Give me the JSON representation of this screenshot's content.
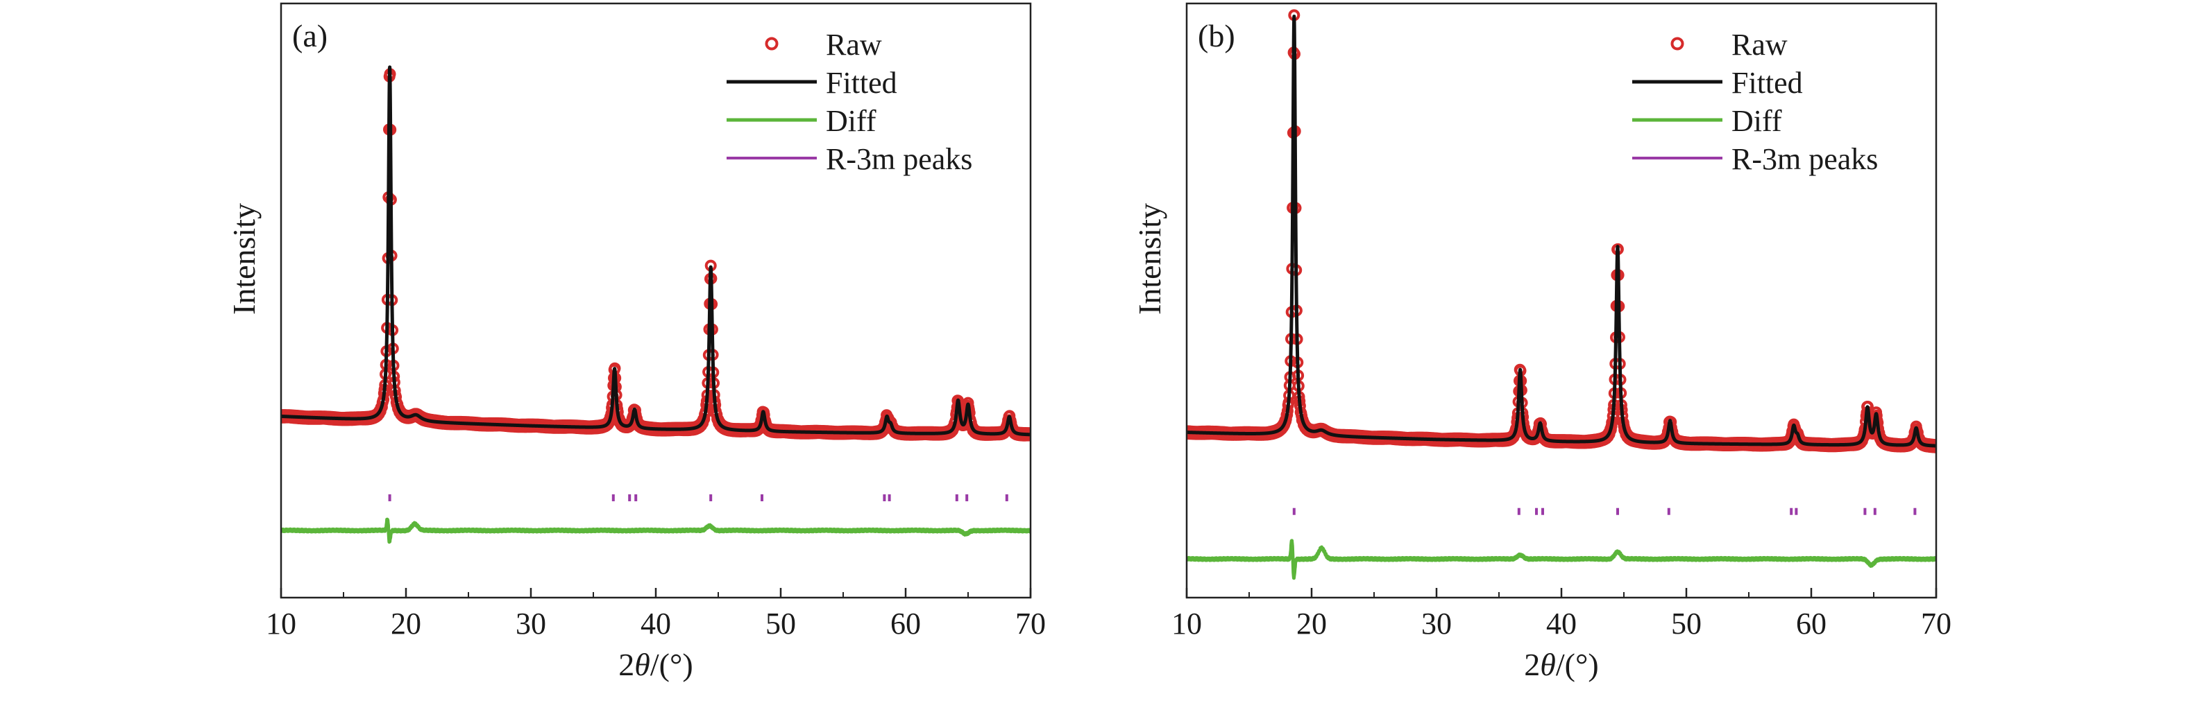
{
  "chart_data": [
    {
      "type": "line",
      "panel_label": "(a)",
      "xlabel_prefix": "2",
      "xlabel_symbol": "θ",
      "xlabel_suffix": "/(°)",
      "ylabel": "Intensity",
      "xlim": [
        10,
        70
      ],
      "x_ticks": [
        10,
        20,
        30,
        40,
        50,
        60,
        70
      ],
      "ylim": [
        0,
        1
      ],
      "grid": false,
      "legend_position": "top-right",
      "colors": {
        "raw": "#d62b2b",
        "fitted": "#111111",
        "diff": "#5bb53a",
        "peaks": "#9a3aa6"
      },
      "background": {
        "x": [
          10,
          20,
          30,
          40,
          50,
          60,
          70
        ],
        "y": [
          0.305,
          0.296,
          0.289,
          0.283,
          0.279,
          0.276,
          0.274
        ]
      },
      "peaks": [
        {
          "x": 18.7,
          "height": 0.595,
          "width": 0.13
        },
        {
          "x": 20.8,
          "height": 0.01,
          "width": 0.5
        },
        {
          "x": 36.7,
          "height": 0.1,
          "width": 0.15
        },
        {
          "x": 38.3,
          "height": 0.032,
          "width": 0.16
        },
        {
          "x": 44.4,
          "height": 0.275,
          "width": 0.15
        },
        {
          "x": 48.6,
          "height": 0.033,
          "width": 0.16
        },
        {
          "x": 58.5,
          "height": 0.026,
          "width": 0.16
        },
        {
          "x": 58.8,
          "height": 0.012,
          "width": 0.16
        },
        {
          "x": 64.2,
          "height": 0.055,
          "width": 0.17
        },
        {
          "x": 65.0,
          "height": 0.048,
          "width": 0.17
        },
        {
          "x": 68.3,
          "height": 0.03,
          "width": 0.17
        }
      ],
      "bragg_positions": [
        18.7,
        36.6,
        37.9,
        38.4,
        44.4,
        48.5,
        58.3,
        58.7,
        64.1,
        64.9,
        68.1
      ],
      "bragg_y": 0.168,
      "diff_baseline": 0.113,
      "diff_features": [
        {
          "x": 18.6,
          "amplitude": 0.028,
          "type": "derivative"
        },
        {
          "x": 20.7,
          "amplitude": 0.011,
          "type": "bump"
        },
        {
          "x": 44.3,
          "amplitude": 0.008,
          "type": "bump"
        },
        {
          "x": 64.8,
          "amplitude": -0.006,
          "type": "bump"
        }
      ],
      "series": [
        {
          "name": "Raw"
        },
        {
          "name": "Fitted"
        },
        {
          "name": "Diff"
        },
        {
          "name": "R-3m peaks"
        }
      ]
    },
    {
      "type": "line",
      "panel_label": "(b)",
      "xlabel_prefix": "2",
      "xlabel_symbol": "θ",
      "xlabel_suffix": "/(°)",
      "ylabel": "Intensity",
      "xlim": [
        10,
        70
      ],
      "x_ticks": [
        10,
        20,
        30,
        40,
        50,
        60,
        70
      ],
      "ylim": [
        0,
        1
      ],
      "grid": false,
      "legend_position": "top-right",
      "colors": {
        "raw": "#d62b2b",
        "fitted": "#111111",
        "diff": "#5bb53a",
        "peaks": "#9a3aa6"
      },
      "background": {
        "x": [
          10,
          20,
          30,
          40,
          50,
          60,
          70
        ],
        "y": [
          0.278,
          0.272,
          0.266,
          0.262,
          0.259,
          0.257,
          0.255
        ]
      },
      "peaks": [
        {
          "x": 18.6,
          "height": 0.705,
          "width": 0.13
        },
        {
          "x": 20.8,
          "height": 0.008,
          "width": 0.5
        },
        {
          "x": 36.7,
          "height": 0.12,
          "width": 0.15
        },
        {
          "x": 38.3,
          "height": 0.03,
          "width": 0.16
        },
        {
          "x": 44.5,
          "height": 0.33,
          "width": 0.15
        },
        {
          "x": 48.7,
          "height": 0.038,
          "width": 0.16
        },
        {
          "x": 58.6,
          "height": 0.03,
          "width": 0.16
        },
        {
          "x": 58.9,
          "height": 0.012,
          "width": 0.16
        },
        {
          "x": 64.5,
          "height": 0.062,
          "width": 0.17
        },
        {
          "x": 65.2,
          "height": 0.05,
          "width": 0.17
        },
        {
          "x": 68.4,
          "height": 0.03,
          "width": 0.17
        }
      ],
      "bragg_positions": [
        18.6,
        36.6,
        38.0,
        38.5,
        44.5,
        48.6,
        58.4,
        58.8,
        64.3,
        65.1,
        68.3
      ],
      "bragg_y": 0.145,
      "diff_baseline": 0.065,
      "diff_features": [
        {
          "x": 18.5,
          "amplitude": 0.045,
          "type": "derivative"
        },
        {
          "x": 20.8,
          "amplitude": 0.018,
          "type": "bump"
        },
        {
          "x": 36.7,
          "amplitude": 0.007,
          "type": "bump"
        },
        {
          "x": 44.5,
          "amplitude": 0.012,
          "type": "bump"
        },
        {
          "x": 64.8,
          "amplitude": -0.01,
          "type": "bump"
        }
      ],
      "series": [
        {
          "name": "Raw"
        },
        {
          "name": "Fitted"
        },
        {
          "name": "Diff"
        },
        {
          "name": "R-3m peaks"
        }
      ]
    }
  ]
}
